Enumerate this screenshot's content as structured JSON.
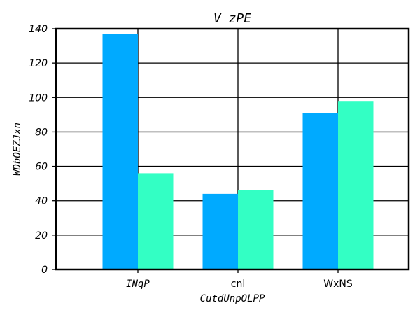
{
  "chart_data": {
    "type": "bar",
    "title": "V zPE",
    "xlabel": "CutdUnpOLPP",
    "ylabel": "WDbOEZJxn",
    "categories": [
      "INqP",
      "cnl",
      "WxNS"
    ],
    "series": [
      {
        "color": "#00aaff",
        "values": [
          137,
          44,
          91
        ]
      },
      {
        "color": "#33ffc4",
        "values": [
          56,
          46,
          98
        ]
      }
    ],
    "ylim": [
      0,
      140
    ],
    "yticks": [
      0,
      20,
      40,
      60,
      80,
      100,
      120,
      140
    ],
    "grid": true,
    "legend": "none"
  }
}
